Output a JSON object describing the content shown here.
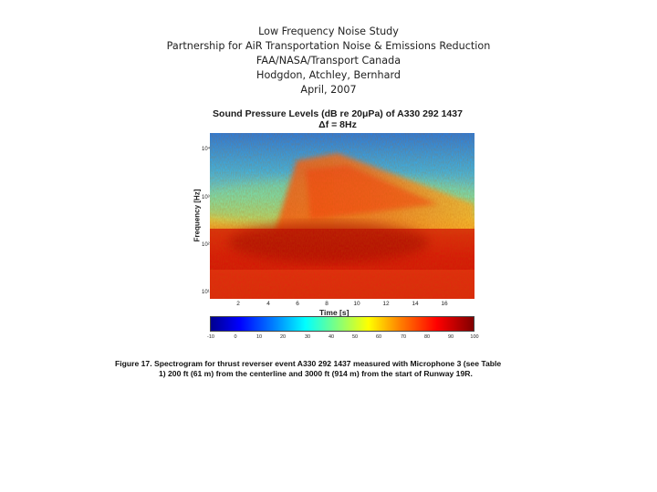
{
  "header": {
    "line1": "Low Frequency Noise Study",
    "line2": "Partnership for AiR Transportation Noise & Emissions Reduction",
    "line3": "FAA/NASA/Transport Canada",
    "line4": "Hodgdon, Atchley, Bernhard",
    "line5": "April, 2007"
  },
  "figure": {
    "title_line1": "Sound Pressure Levels (dB re 20μPa) of A330 292 1437",
    "title_line2": "Δf = 8Hz",
    "y_axis_label": "Frequency [Hz]",
    "x_axis_label": "Time [s]",
    "y_ticks": [
      "10⁴",
      "10³",
      "10²",
      "10¹"
    ],
    "x_ticks": [
      "2",
      "4",
      "6",
      "8",
      "10",
      "12",
      "14",
      "16"
    ],
    "colorbar_ticks": [
      "-10",
      "0",
      "10",
      "20",
      "30",
      "40",
      "50",
      "60",
      "70",
      "80",
      "90",
      "100"
    ]
  },
  "caption": {
    "line1": "Figure 17. Spectrogram for thrust reverser event A330 292 1437 measured with Microphone 3 (see Table",
    "line2": "1) 200 ft (61 m) from the centerline and 3000 ft (914 m) from the start of Runway 19R."
  },
  "colors": {
    "low": "#0000ff",
    "mid": "#00ffff",
    "high": "#ff0000",
    "max": "#800000"
  }
}
